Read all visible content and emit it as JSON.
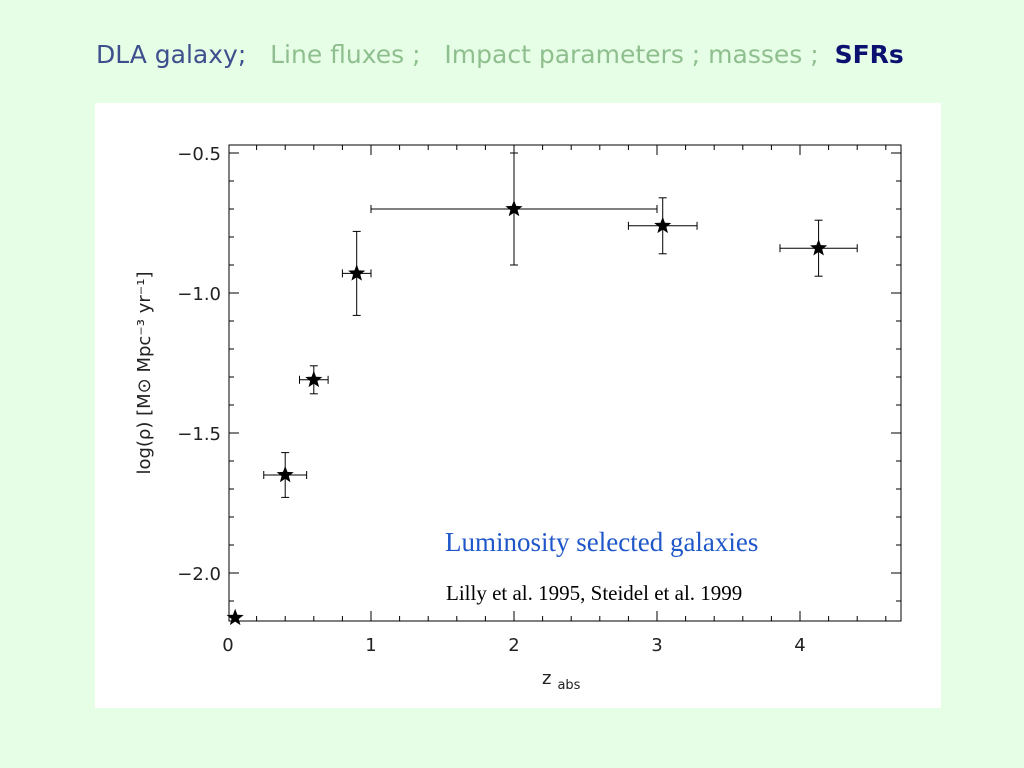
{
  "slide": {
    "title_parts": [
      {
        "text": "DLA galaxy;",
        "color": "#3d4f8c"
      },
      {
        "text": "Line fluxes ;",
        "color": "#8fbf8f"
      },
      {
        "text": "Impact parameters ; masses ;",
        "color": "#8fbf8f"
      },
      {
        "text": "SFRs",
        "color": "#0b1170"
      }
    ],
    "background": "#e6fde6"
  },
  "chart_data": {
    "type": "scatter",
    "xlabel": "z",
    "xlabel_sub": "abs",
    "ylabel": "log(ρ)  [M⊙ Mpc⁻³ yr⁻¹]",
    "xlim": [
      0,
      4.7
    ],
    "ylim": [
      -2.2,
      -0.45
    ],
    "xticks": [
      0,
      1,
      2,
      3,
      4
    ],
    "yticks": [
      -2.0,
      -1.5,
      -1.0,
      -0.5
    ],
    "xtick_labels": [
      "0",
      "1",
      "2",
      "3",
      "4"
    ],
    "ytick_labels": [
      "−2.0",
      "−1.5",
      "−1.0",
      "−0.5"
    ],
    "marker": "star",
    "points": [
      {
        "x": 0.05,
        "y": -2.16,
        "xerr": [
          0.0,
          0.0
        ],
        "yerr": [
          0.03,
          0.0
        ]
      },
      {
        "x": 0.4,
        "y": -1.65,
        "xerr": [
          0.15,
          0.15
        ],
        "yerr": [
          0.08,
          0.08
        ]
      },
      {
        "x": 0.6,
        "y": -1.31,
        "xerr": [
          0.1,
          0.1
        ],
        "yerr": [
          0.05,
          0.05
        ]
      },
      {
        "x": 0.9,
        "y": -0.93,
        "xerr": [
          0.1,
          0.1
        ],
        "yerr": [
          0.15,
          0.15
        ]
      },
      {
        "x": 2.0,
        "y": -0.7,
        "xerr": [
          1.0,
          1.0
        ],
        "yerr": [
          0.2,
          0.2
        ]
      },
      {
        "x": 3.04,
        "y": -0.76,
        "xerr": [
          0.24,
          0.24
        ],
        "yerr": [
          0.1,
          0.1
        ]
      },
      {
        "x": 4.13,
        "y": -0.84,
        "xerr": [
          0.27,
          0.27
        ],
        "yerr": [
          0.1,
          0.1
        ]
      }
    ],
    "annotations": [
      {
        "text": "Luminosity selected galaxies",
        "color": "#1f57c8"
      },
      {
        "text": "Lilly et al. 1995, Steidel et al. 1999",
        "color": "#000000"
      }
    ]
  }
}
